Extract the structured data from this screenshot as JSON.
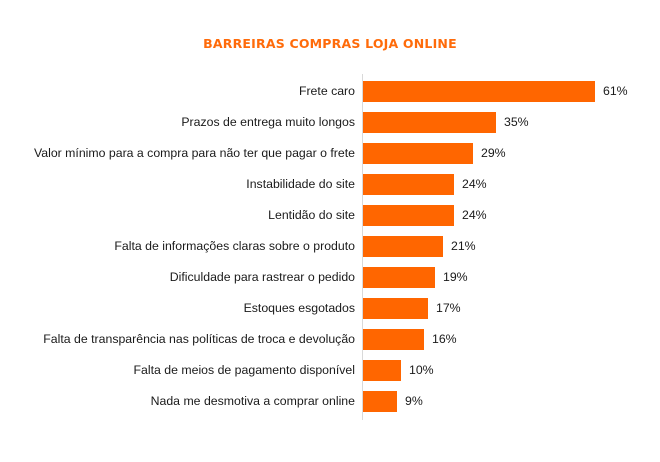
{
  "chart_data": {
    "type": "bar",
    "orientation": "horizontal",
    "title": "BARREIRAS COMPRAS LOJA ONLINE",
    "xlabel": "",
    "ylabel": "",
    "categories": [
      "Frete caro",
      "Prazos de entrega muito longos",
      "Valor mínimo para a compra para não ter que pagar o frete",
      "Instabilidade do site",
      "Lentidão do site",
      "Falta de informações claras sobre o produto",
      "Dificuldade para rastrear o pedido",
      "Estoques esgotados",
      "Falta de transparência nas políticas de troca e devolução",
      "Falta de meios de pagamento disponível",
      "Nada me desmotiva a comprar online"
    ],
    "values": [
      61,
      35,
      29,
      24,
      24,
      21,
      19,
      17,
      16,
      10,
      9
    ],
    "value_labels": [
      "61%",
      "35%",
      "29%",
      "24%",
      "24%",
      "21%",
      "19%",
      "17%",
      "16%",
      "10%",
      "9%"
    ],
    "unit": "%",
    "grid": false,
    "legend": null,
    "colors": {
      "bar": "#ff6600",
      "title": "#ff6b0a",
      "axis": "#d9d9d9"
    }
  }
}
